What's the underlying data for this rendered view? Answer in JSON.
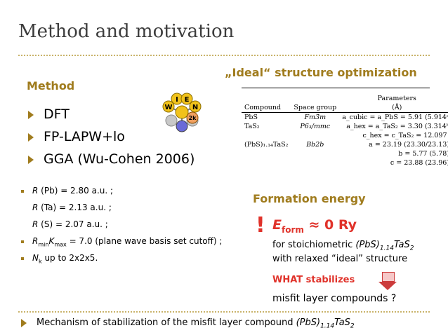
{
  "title": "Method and motivation",
  "method_heading": "Method",
  "method_items": [
    "DFT",
    "FP-LAPW+lo",
    "GGA (Wu-Cohen 2006)"
  ],
  "logo_letters": [
    "W",
    "I",
    "E",
    "N",
    "2k"
  ],
  "params": [
    {
      "label": "R",
      "sub": "",
      "text": " (Pb) = 2.80 a.u. ;"
    },
    {
      "label": "R",
      "sub": "",
      "text": " (Ta) = 2.13 a.u. ;"
    },
    {
      "label": "R",
      "sub": "",
      "text": " (S) =  2.07 a.u. ;"
    }
  ],
  "rk_param": {
    "r": "R",
    "rsub": "min",
    "k": "K",
    "ksub": "max",
    "text": " = 7.0 (plane wave basis set cutoff) ;"
  },
  "nk_param": {
    "n": "N",
    "nsub": "k",
    "text": " up to 2x2x5."
  },
  "ideal_heading": "„Ideal“ structure optimization",
  "table": {
    "header_top": "Parameters",
    "header": [
      "Compound",
      "Space group",
      "(Å)"
    ],
    "rows": [
      {
        "compound": "PbS",
        "group": "Fm3̄m",
        "param": "a_cubic = a_PbS = 5.91 (5.914ᵃ)"
      },
      {
        "compound": "TaS₂",
        "group": "P6₃/mmc",
        "param": "a_hex = a_TaS₂ = 3.30 (3.314ᵇ)"
      },
      {
        "compound": "",
        "group": "",
        "param": "c_hex = c_TaS₂ = 12.097 ᵇ"
      },
      {
        "compound": "(PbS)₁.₁₄TaS₂",
        "group": "Bb2b",
        "param": "a = 23.19 (23.30/23.13)ᶜ"
      },
      {
        "compound": "",
        "group": "",
        "param": "b = 5.77 (5.78)ᶜ"
      },
      {
        "compound": "",
        "group": "",
        "param": "c = 23.88 (23.96)ᶜ"
      }
    ]
  },
  "formation_heading": "Formation energy",
  "exclaim": "!",
  "energy": {
    "e": "E",
    "sub": "form",
    "rest": " ≈ 0 Ry"
  },
  "stoich_pre": "for stoichiometric ",
  "stoich_formula": "(PbS)",
  "stoich_sub": "1.14",
  "stoich_tail": "TaS",
  "stoich_tail_sub": "2",
  "relaxed_line": "with relaxed  “ideal” structure",
  "what_stabilizes": "WHAT stabilizes",
  "misfit_line": "misfit layer compounds ?",
  "footer": {
    "text": "Mechanism of stabilization of the misfit layer compound ",
    "formula": "(PbS)",
    "sub1": "1.14",
    "tail": "TaS",
    "sub2": "2"
  },
  "colors": {
    "accent": "#a07c1e",
    "red": "#e0322a",
    "title": "#3d3d3d"
  }
}
